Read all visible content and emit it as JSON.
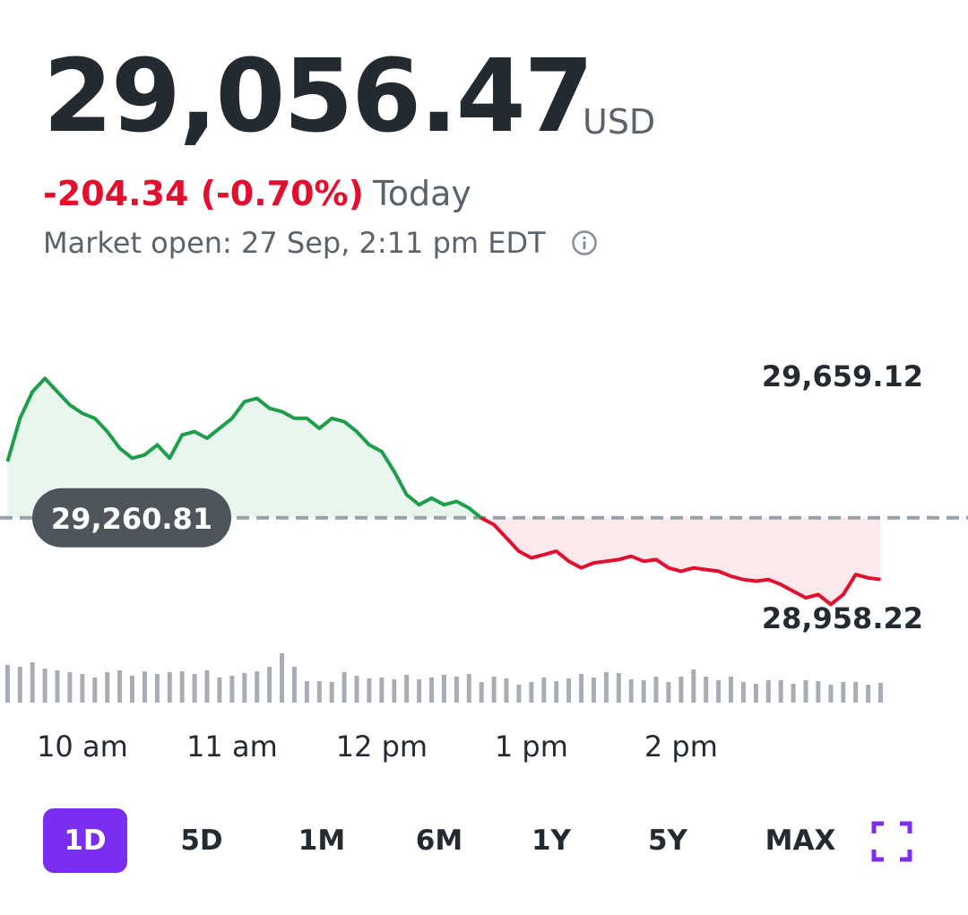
{
  "quote": {
    "price": "29,056.47",
    "currency": "USD",
    "change": "-204.34 (-0.70%)",
    "period_label": "Today",
    "market_status": "Market open: 27 Sep, 2:11 pm EDT",
    "info_icon": "info-circle-icon"
  },
  "colors": {
    "up": "#1e9e4a",
    "down": "#e0102e",
    "up_fill": "#e9f6ee",
    "down_fill": "#fbe9ec",
    "baseline": "#9aa0a8",
    "volume": "#a8adb4",
    "accent": "#7b2eef",
    "text": "#232a31",
    "muted": "#5b636a"
  },
  "range_buttons": [
    {
      "label": "1D",
      "active": true
    },
    {
      "label": "5D",
      "active": false
    },
    {
      "label": "1M",
      "active": false
    },
    {
      "label": "6M",
      "active": false
    },
    {
      "label": "1Y",
      "active": false
    },
    {
      "label": "5Y",
      "active": false
    },
    {
      "label": "MAX",
      "active": false
    }
  ],
  "fullscreen_icon": "fullscreen-corners-icon",
  "chart_data": {
    "type": "area",
    "previous_close": 29260.81,
    "previous_close_label": "29,260.81",
    "y_high_label": "29,659.12",
    "y_low_label": "28,958.22",
    "y_high": 29659.12,
    "y_low": 28958.22,
    "x_ticks": [
      "10 am",
      "11 am",
      "12 pm",
      "1 pm",
      "2 pm"
    ],
    "x_tick_times": [
      10,
      11,
      12,
      13,
      14
    ],
    "session_start": 9.5,
    "session_end": 16,
    "time_step_minutes": 5,
    "prices": [
      29430,
      29560,
      29640,
      29680,
      29640,
      29600,
      29575,
      29560,
      29520,
      29470,
      29440,
      29450,
      29480,
      29440,
      29510,
      29520,
      29500,
      29530,
      29560,
      29610,
      29620,
      29590,
      29580,
      29560,
      29560,
      29530,
      29560,
      29550,
      29520,
      29480,
      29460,
      29400,
      29330,
      29300,
      29320,
      29300,
      29310,
      29290,
      29260,
      29240,
      29200,
      29160,
      29140,
      29150,
      29160,
      29130,
      29110,
      29125,
      29130,
      29135,
      29145,
      29130,
      29135,
      29110,
      29100,
      29110,
      29105,
      29100,
      29085,
      29075,
      29070,
      29075,
      29060,
      29040,
      29020,
      29030,
      29000,
      29030,
      29090,
      29080,
      29075
    ],
    "volumes": [
      42,
      40,
      45,
      38,
      36,
      34,
      32,
      28,
      34,
      36,
      30,
      35,
      32,
      34,
      35,
      32,
      36,
      28,
      30,
      33,
      35,
      40,
      55,
      40,
      24,
      24,
      23,
      34,
      30,
      27,
      28,
      26,
      31,
      26,
      28,
      31,
      29,
      32,
      23,
      29,
      27,
      20,
      23,
      28,
      24,
      27,
      32,
      28,
      34,
      33,
      26,
      25,
      29,
      23,
      29,
      37,
      29,
      25,
      29,
      23,
      21,
      25,
      25,
      21,
      25,
      24,
      20,
      23,
      23,
      20,
      22
    ]
  }
}
